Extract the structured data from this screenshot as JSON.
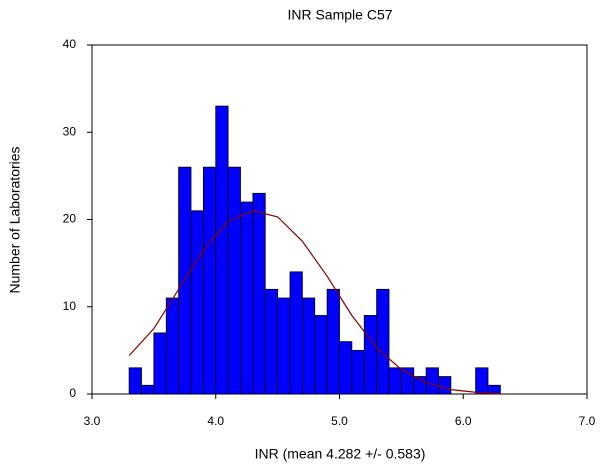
{
  "chart_data": {
    "type": "histogram",
    "title": "INR Sample C57",
    "xlabel": "INR (mean 4.282 +/- 0.583)",
    "ylabel": "Number of Laboratories",
    "bins": [
      3.3,
      3.4,
      3.5,
      3.6,
      3.7,
      3.8,
      3.9,
      4.0,
      4.1,
      4.2,
      4.3,
      4.4,
      4.5,
      4.6,
      4.7,
      4.8,
      4.9,
      5.0,
      5.1,
      5.2,
      5.3,
      5.4,
      5.5,
      5.6,
      5.7,
      5.8,
      5.9,
      6.0,
      6.1,
      6.2,
      6.3
    ],
    "counts": [
      3,
      1,
      7,
      11,
      26,
      21,
      26,
      33,
      26,
      22,
      23,
      12,
      11,
      14,
      11,
      9,
      12,
      6,
      5,
      9,
      12,
      3,
      3,
      2,
      3,
      2,
      0,
      0,
      3,
      1
    ],
    "color": "#0000ff",
    "curve": {
      "color": "#8b0000",
      "x": [
        3.3,
        3.5,
        3.7,
        3.9,
        4.1,
        4.3,
        4.5,
        4.7,
        4.9,
        5.1,
        5.3,
        5.5,
        5.7,
        5.9,
        6.1,
        6.3
      ],
      "values": [
        4.4,
        7.5,
        12,
        16.5,
        19.8,
        21,
        20.3,
        17.5,
        13.5,
        9,
        5.3,
        2.8,
        1.3,
        0.5,
        0.2,
        0.05
      ]
    },
    "xlim": [
      3,
      7
    ],
    "ylim": [
      0,
      40
    ],
    "xticks": [
      {
        "value": 3,
        "label": "3.0"
      },
      {
        "value": 4,
        "label": "4.0"
      },
      {
        "value": 5,
        "label": "5.0"
      },
      {
        "value": 6,
        "label": "6.0"
      },
      {
        "value": 7,
        "label": "7.0"
      }
    ],
    "yticks": [
      0,
      10,
      20,
      30,
      40
    ]
  }
}
